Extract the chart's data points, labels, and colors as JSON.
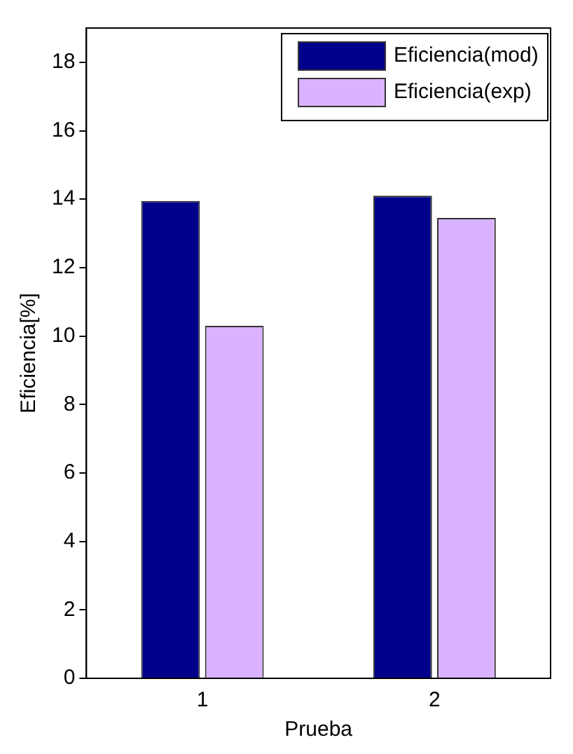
{
  "chart_data": {
    "type": "bar",
    "xlabel": "Prueba",
    "ylabel": "Eficiencia[%]",
    "categories": [
      "1",
      "2"
    ],
    "series": [
      {
        "name": "Eficiencia(mod)",
        "color": "#00008b",
        "values": [
          13.95,
          14.1
        ]
      },
      {
        "name": "Eficiencia(exp)",
        "color": "#d9b3ff",
        "values": [
          10.3,
          13.45
        ]
      }
    ],
    "ylim": [
      0,
      19
    ],
    "yticks": [
      0,
      2,
      4,
      6,
      8,
      10,
      12,
      14,
      16,
      18
    ],
    "grid": false,
    "legend": "top right"
  }
}
